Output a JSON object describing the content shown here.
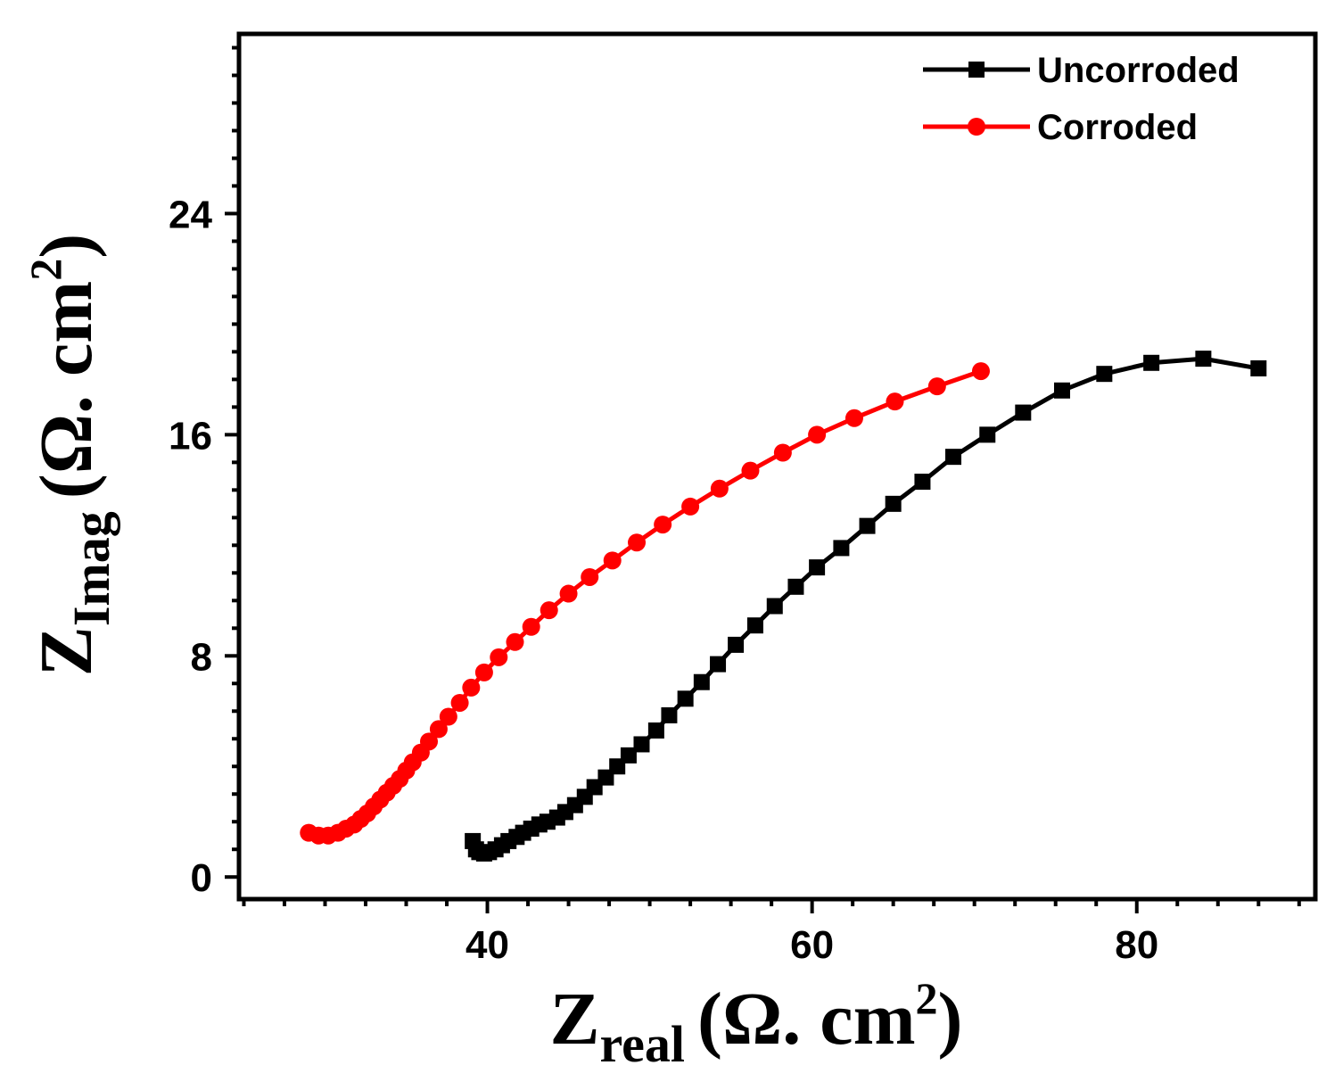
{
  "chart_data": {
    "type": "line",
    "title": "",
    "xlabel": {
      "main": "Z",
      "sub": "real",
      "unit": "(Ω. cm",
      "sup": "2",
      "close": ")"
    },
    "ylabel": {
      "main": "Z",
      "sub": "Imag",
      "unit": "(Ω. cm",
      "sup": "2",
      "close": ")"
    },
    "xlim": [
      24.7,
      91
    ],
    "ylim": [
      -0.8,
      30.5
    ],
    "xticks": [
      40,
      60,
      80
    ],
    "yticks": [
      0,
      8,
      16,
      24
    ],
    "xtick_labels": [
      "40",
      "60",
      "80"
    ],
    "ytick_labels": [
      "0",
      "8",
      "16",
      "24"
    ],
    "grid": false,
    "legend_position": "top-right",
    "series": [
      {
        "name": "Uncorroded",
        "color": "#000000",
        "marker": "square",
        "x": [
          39.1,
          39.3,
          39.5,
          39.8,
          40.1,
          40.5,
          40.9,
          41.3,
          41.8,
          42.2,
          42.7,
          43.2,
          43.7,
          44.3,
          44.8,
          45.4,
          46.0,
          46.6,
          47.3,
          48.0,
          48.7,
          49.5,
          50.4,
          51.2,
          52.2,
          53.2,
          54.2,
          55.3,
          56.5,
          57.7,
          59.0,
          60.3,
          61.8,
          63.4,
          65.0,
          66.8,
          68.7,
          70.8,
          73.0,
          75.4,
          78.0,
          80.9,
          84.1,
          87.5
        ],
        "y": [
          1.3,
          1.0,
          0.9,
          0.85,
          0.9,
          1.0,
          1.15,
          1.3,
          1.45,
          1.6,
          1.75,
          1.9,
          2.0,
          2.15,
          2.35,
          2.6,
          2.9,
          3.25,
          3.6,
          4.0,
          4.4,
          4.8,
          5.3,
          5.85,
          6.45,
          7.05,
          7.7,
          8.4,
          9.1,
          9.8,
          10.5,
          11.2,
          11.9,
          12.7,
          13.5,
          14.3,
          15.2,
          16.0,
          16.8,
          17.6,
          18.2,
          18.6,
          18.75,
          18.4
        ]
      },
      {
        "name": "Corroded",
        "color": "#ff0000",
        "marker": "circle",
        "x": [
          29.0,
          29.6,
          30.2,
          30.8,
          31.3,
          31.8,
          32.2,
          32.6,
          33.0,
          33.4,
          33.8,
          34.2,
          34.6,
          35.0,
          35.4,
          35.9,
          36.4,
          37.0,
          37.6,
          38.3,
          39.0,
          39.8,
          40.7,
          41.7,
          42.7,
          43.8,
          45.0,
          46.3,
          47.7,
          49.2,
          50.8,
          52.5,
          54.3,
          56.2,
          58.2,
          60.3,
          62.6,
          65.1,
          67.7,
          70.4
        ],
        "y": [
          1.6,
          1.5,
          1.5,
          1.6,
          1.75,
          1.9,
          2.1,
          2.3,
          2.55,
          2.8,
          3.05,
          3.3,
          3.55,
          3.85,
          4.15,
          4.5,
          4.9,
          5.35,
          5.8,
          6.3,
          6.85,
          7.4,
          7.95,
          8.5,
          9.05,
          9.65,
          10.25,
          10.85,
          11.45,
          12.1,
          12.75,
          13.4,
          14.05,
          14.7,
          15.35,
          16.0,
          16.6,
          17.2,
          17.75,
          18.3
        ]
      }
    ]
  }
}
